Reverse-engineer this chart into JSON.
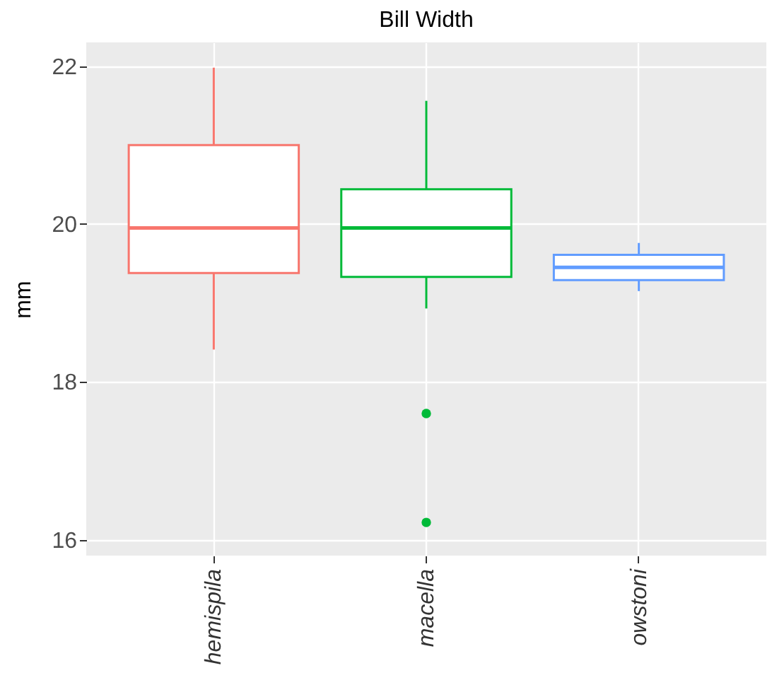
{
  "chart_data": {
    "type": "box",
    "title": "Bill Width",
    "ylabel": "mm",
    "categories": [
      "hemispila",
      "macella",
      "owstoni"
    ],
    "colors": [
      "#f8766d",
      "#00ba38",
      "#619cff"
    ],
    "boxes": [
      {
        "low": 18.41,
        "q1": 19.38,
        "median": 19.95,
        "q3": 21.0,
        "high": 21.98
      },
      {
        "low": 18.93,
        "q1": 19.33,
        "median": 19.95,
        "q3": 20.44,
        "high": 21.56,
        "outliers": [
          17.6,
          16.22
        ]
      },
      {
        "low": 19.15,
        "q1": 19.29,
        "median": 19.45,
        "q3": 19.61,
        "high": 19.76
      }
    ],
    "ylim": [
      15.8,
      22.3
    ],
    "yticks": [
      16,
      18,
      20,
      22
    ],
    "grid": true,
    "legend": false
  }
}
